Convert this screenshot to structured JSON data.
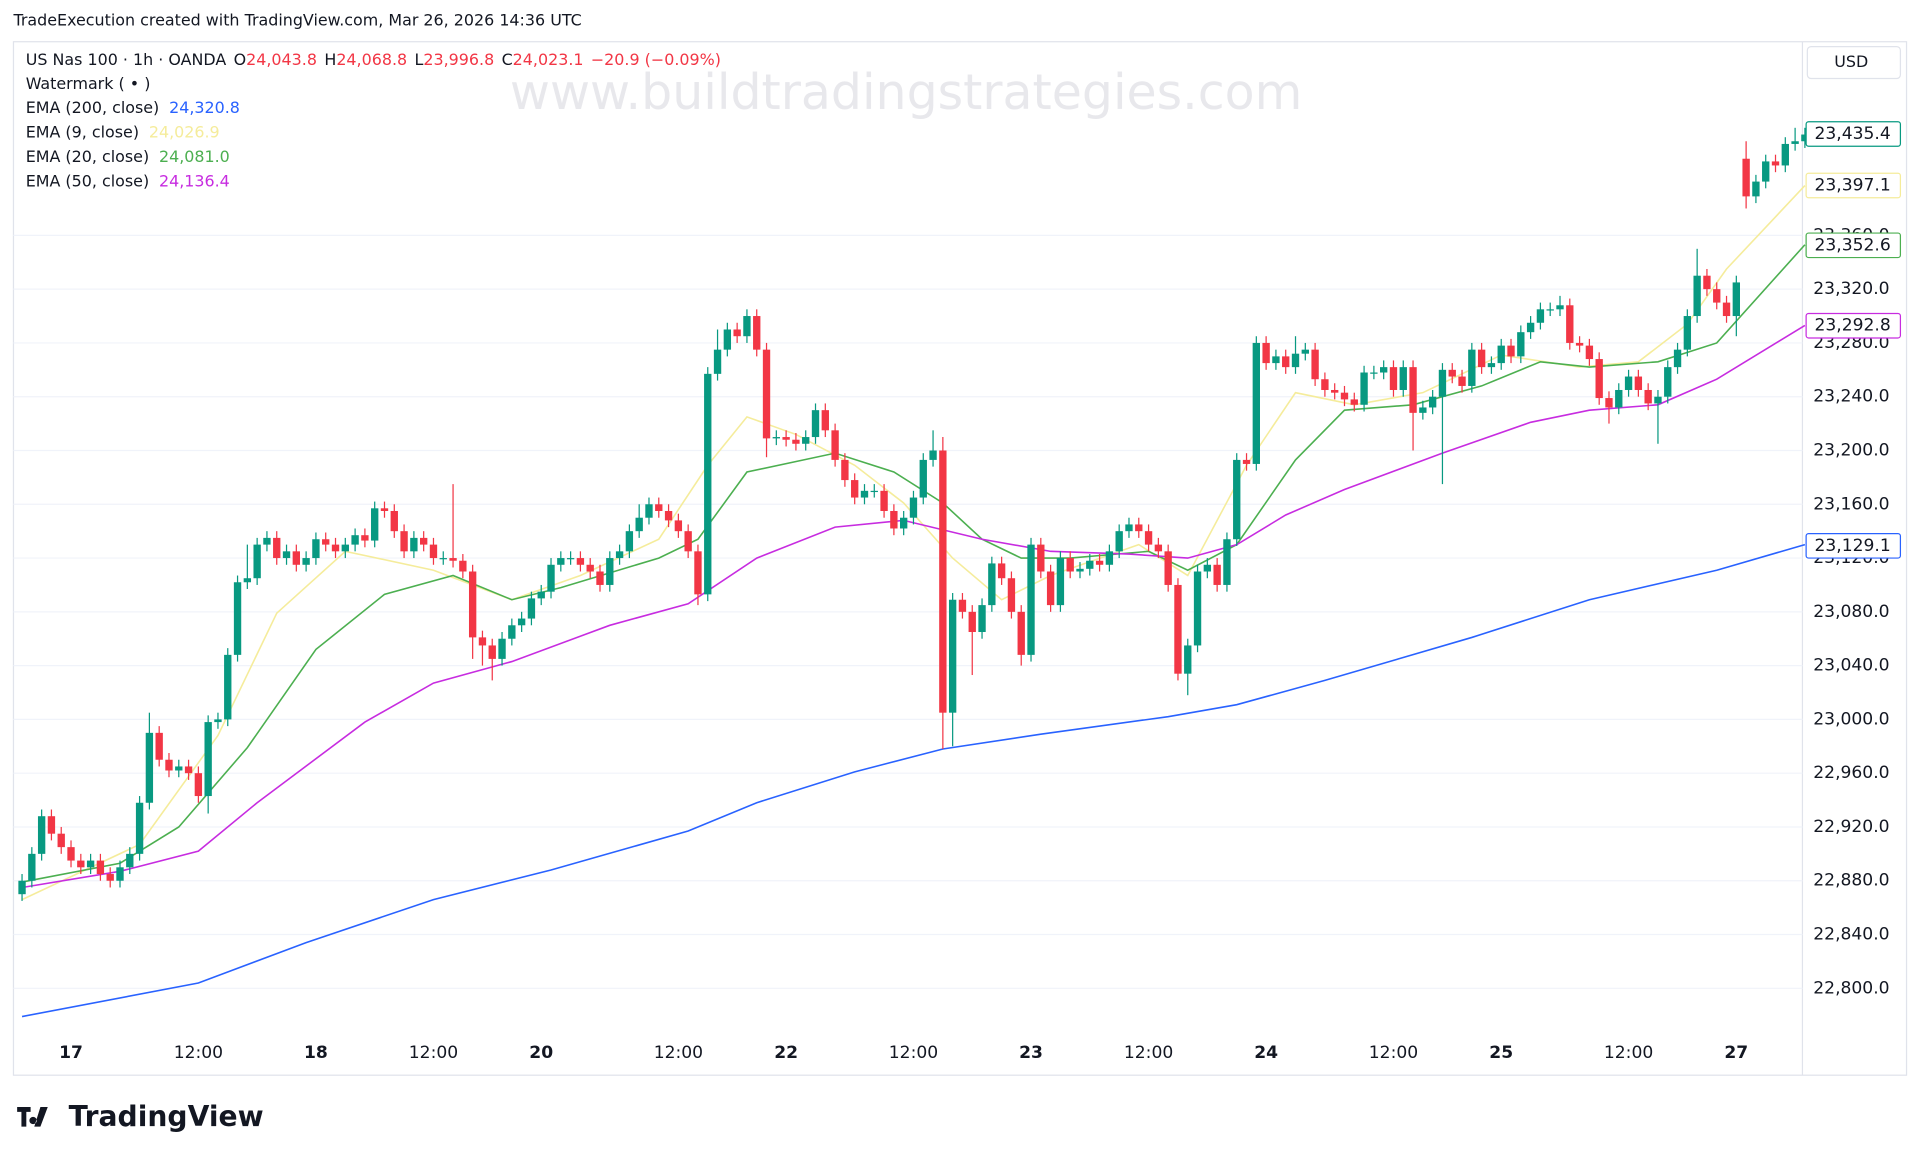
{
  "header": {
    "credit": "TradeExecution created with TradingView.com, Mar 26, 2026 14:36 UTC",
    "logo": "TradingView",
    "currency": "USD",
    "watermark": "www.buildtradingstrategies.com",
    "indicator": "Watermark ( • )"
  },
  "chart_data": {
    "type": "candlestick",
    "title": "US Nas 100 · 1h · OANDA",
    "ohlc_legend": [
      {
        "key": "O",
        "value": "24,043.8"
      },
      {
        "key": "H",
        "value": "24,068.8"
      },
      {
        "key": "L",
        "value": "23,996.8"
      },
      {
        "key": "C",
        "value": "24,023.1"
      }
    ],
    "change": "−20.9 (−0.09%)",
    "categories": [
      null,
      null,
      null,
      null,
      null,
      "17",
      null,
      null,
      null,
      null,
      null,
      null,
      null,
      null,
      null,
      null,
      null,
      null,
      "12:00",
      null,
      null,
      null,
      null,
      null,
      null,
      null,
      null,
      null,
      null,
      null,
      "18",
      null,
      null,
      null,
      null,
      null,
      null,
      null,
      null,
      null,
      null,
      null,
      "12:00",
      null,
      null,
      null,
      null,
      null,
      null,
      null,
      null,
      null,
      null,
      "20",
      null,
      null,
      null,
      null,
      null,
      null,
      null,
      null,
      null,
      null,
      null,
      null,
      null,
      "12:00",
      null,
      null,
      null,
      null,
      null,
      null,
      null,
      null,
      null,
      null,
      "22",
      null,
      null,
      null,
      null,
      null,
      null,
      null,
      null,
      null,
      null,
      null,
      null,
      "12:00",
      null,
      null,
      null,
      null,
      null,
      null,
      null,
      null,
      null,
      null,
      null,
      "23",
      null,
      null,
      null,
      null,
      null,
      null,
      null,
      null,
      null,
      null,
      null,
      "12:00",
      null,
      null,
      null,
      null,
      null,
      null,
      null,
      null,
      null,
      null,
      null,
      "24",
      null,
      null,
      null,
      null,
      null,
      null,
      null,
      null,
      null,
      null,
      null,
      null,
      "12:00",
      null,
      null,
      null,
      null,
      null,
      null,
      null,
      null,
      null,
      null,
      "25",
      null,
      null,
      null,
      null,
      null,
      null,
      null,
      null,
      null,
      null,
      null,
      null,
      "12:00",
      null,
      null,
      null,
      null,
      null,
      null,
      null,
      null,
      null,
      null,
      "27",
      null,
      null,
      null,
      null,
      null,
      null,
      null
    ],
    "candles": {
      "up_color": "#089981",
      "down_color": "#f23645",
      "last_value": 23435.4,
      "last_label": "23,435.4",
      "open": [
        22870,
        22880,
        22900,
        22928,
        22915,
        22905,
        22895,
        22890,
        22895,
        22885,
        22880,
        22890,
        22900,
        22938,
        22990,
        22970,
        22962,
        22965,
        22960,
        22943,
        22998,
        23000,
        23048,
        23102,
        23105,
        23130,
        23135,
        23120,
        23125,
        23115,
        23120,
        23134,
        23130,
        23125,
        23130,
        23137,
        23133,
        23157,
        23155,
        23140,
        23125,
        23135,
        23130,
        23120,
        23120,
        23118,
        23110,
        23061,
        23055,
        23045,
        23060,
        23070,
        23075,
        23090,
        23095,
        23115,
        23120,
        23120,
        23115,
        23110,
        23100,
        23120,
        23125,
        23140,
        23150,
        23160,
        23155,
        23148,
        23140,
        23125,
        23093,
        23257,
        23275,
        23290,
        23285,
        23300,
        23275,
        23209,
        23210,
        23208,
        23205,
        23210,
        23230,
        23215,
        23193,
        23178,
        23165,
        23170,
        23170,
        23155,
        23142,
        23150,
        23165,
        23193,
        23200,
        23005,
        23089,
        23080,
        23065,
        23085,
        23116,
        23105,
        23080,
        23048,
        23130,
        23110,
        23085,
        23120,
        23110,
        23112,
        23118,
        23115,
        23125,
        23140,
        23145,
        23140,
        23130,
        23125,
        23100,
        23034,
        23055,
        23110,
        23115,
        23100,
        23134,
        23193,
        23190,
        23280,
        23265,
        23270,
        23262,
        23272,
        23275,
        23253,
        23245,
        23243,
        23238,
        23234,
        23258,
        23258,
        23262,
        23245,
        23262,
        23228,
        23232,
        23240,
        23260,
        23255,
        23248,
        23275,
        23262,
        23265,
        23278,
        23270,
        23288,
        23295,
        23305,
        23305,
        23308,
        23280,
        23278,
        23268,
        23239,
        23232,
        23245,
        23255,
        23245,
        23235,
        23240,
        23262,
        23275,
        23300,
        23330,
        23320,
        23310,
        23300,
        23417,
        23389,
        23400,
        23415,
        23412,
        23428,
        23430
      ],
      "high": [
        22885,
        22905,
        22933,
        22933,
        22920,
        22910,
        22900,
        22900,
        22900,
        22890,
        22895,
        22905,
        22943,
        23005,
        22995,
        22975,
        22970,
        22970,
        22965,
        23003,
        23005,
        23053,
        23107,
        23130,
        23135,
        23140,
        23140,
        23130,
        23130,
        23125,
        23139,
        23139,
        23135,
        23135,
        23142,
        23142,
        23162,
        23162,
        23160,
        23145,
        23140,
        23140,
        23135,
        23125,
        23175,
        23123,
        23115,
        23066,
        23060,
        23065,
        23075,
        23080,
        23095,
        23100,
        23120,
        23125,
        23125,
        23125,
        23120,
        23115,
        23125,
        23130,
        23145,
        23160,
        23165,
        23165,
        23160,
        23153,
        23145,
        23130,
        23262,
        23290,
        23295,
        23295,
        23305,
        23305,
        23280,
        23215,
        23215,
        23213,
        23215,
        23235,
        23235,
        23220,
        23198,
        23183,
        23175,
        23175,
        23175,
        23160,
        23155,
        23170,
        23198,
        23215,
        23210,
        23094,
        23094,
        23085,
        23090,
        23121,
        23121,
        23110,
        23085,
        23135,
        23135,
        23115,
        23125,
        23125,
        23117,
        23123,
        23123,
        23130,
        23145,
        23150,
        23150,
        23145,
        23135,
        23130,
        23105,
        23060,
        23115,
        23120,
        23120,
        23139,
        23198,
        23198,
        23285,
        23285,
        23275,
        23275,
        23285,
        23280,
        23280,
        23258,
        23250,
        23248,
        23243,
        23263,
        23263,
        23267,
        23267,
        23267,
        23267,
        23237,
        23245,
        23265,
        23265,
        23260,
        23280,
        23280,
        23270,
        23283,
        23283,
        23293,
        23300,
        23310,
        23310,
        23315,
        23313,
        23285,
        23283,
        23273,
        23244,
        23250,
        23260,
        23260,
        23250,
        23245,
        23267,
        23280,
        23305,
        23350,
        23335,
        23325,
        23315,
        23330,
        23430,
        23405,
        23420,
        23420,
        23433,
        23440,
        23440
      ],
      "low": [
        22865,
        22875,
        22895,
        22910,
        22900,
        22890,
        22885,
        22885,
        22880,
        22875,
        22875,
        22885,
        22895,
        22933,
        22965,
        22957,
        22957,
        22955,
        22938,
        22930,
        22993,
        22995,
        23043,
        23097,
        23100,
        23125,
        23115,
        23115,
        23110,
        23110,
        23115,
        23125,
        23120,
        23120,
        23125,
        23128,
        23128,
        23150,
        23135,
        23120,
        23120,
        23125,
        23115,
        23115,
        23113,
        23105,
        23045,
        23040,
        23029,
        23040,
        23055,
        23065,
        23070,
        23085,
        23090,
        23110,
        23115,
        23110,
        23105,
        23095,
        23095,
        23115,
        23120,
        23135,
        23145,
        23150,
        23143,
        23135,
        23120,
        23085,
        23088,
        23252,
        23270,
        23280,
        23280,
        23270,
        23195,
        23204,
        23203,
        23200,
        23200,
        23205,
        23210,
        23188,
        23173,
        23160,
        23160,
        23165,
        23150,
        23137,
        23137,
        23145,
        23160,
        23188,
        22978,
        22980,
        23075,
        23033,
        23060,
        23080,
        23100,
        23075,
        23040,
        23043,
        23105,
        23080,
        23080,
        23105,
        23105,
        23107,
        23110,
        23110,
        23120,
        23135,
        23135,
        23125,
        23120,
        23095,
        23029,
        23018,
        23050,
        23105,
        23095,
        23095,
        23129,
        23185,
        23185,
        23260,
        23260,
        23257,
        23257,
        23267,
        23248,
        23240,
        23238,
        23233,
        23229,
        23229,
        23253,
        23253,
        23240,
        23240,
        23200,
        23223,
        23227,
        23175,
        23250,
        23243,
        23243,
        23257,
        23257,
        23260,
        23265,
        23265,
        23283,
        23290,
        23300,
        23300,
        23275,
        23273,
        23263,
        23234,
        23220,
        23227,
        23240,
        23240,
        23230,
        23205,
        23235,
        23257,
        23270,
        23295,
        23315,
        23305,
        23295,
        23285,
        23380,
        23384,
        23395,
        23407,
        23407,
        23423,
        23425
      ],
      "close": [
        22880,
        22900,
        22928,
        22915,
        22905,
        22895,
        22890,
        22895,
        22885,
        22880,
        22890,
        22900,
        22938,
        22990,
        22970,
        22962,
        22965,
        22960,
        22943,
        22998,
        23000,
        23048,
        23102,
        23105,
        23130,
        23135,
        23120,
        23125,
        23115,
        23120,
        23134,
        23130,
        23125,
        23130,
        23137,
        23133,
        23157,
        23155,
        23140,
        23125,
        23135,
        23130,
        23120,
        23120,
        23118,
        23110,
        23061,
        23055,
        23045,
        23060,
        23070,
        23075,
        23090,
        23095,
        23115,
        23120,
        23120,
        23115,
        23110,
        23100,
        23120,
        23125,
        23140,
        23150,
        23160,
        23155,
        23148,
        23140,
        23125,
        23093,
        23257,
        23275,
        23290,
        23285,
        23300,
        23275,
        23209,
        23210,
        23208,
        23205,
        23210,
        23230,
        23215,
        23193,
        23178,
        23165,
        23170,
        23170,
        23155,
        23142,
        23150,
        23165,
        23193,
        23200,
        23005,
        23089,
        23080,
        23065,
        23085,
        23116,
        23105,
        23080,
        23048,
        23130,
        23110,
        23085,
        23120,
        23110,
        23112,
        23118,
        23115,
        23125,
        23140,
        23145,
        23140,
        23130,
        23125,
        23100,
        23034,
        23055,
        23110,
        23115,
        23100,
        23134,
        23193,
        23190,
        23280,
        23265,
        23270,
        23262,
        23272,
        23275,
        23253,
        23245,
        23243,
        23238,
        23234,
        23258,
        23258,
        23262,
        23245,
        23262,
        23228,
        23232,
        23240,
        23260,
        23255,
        23248,
        23275,
        23262,
        23265,
        23278,
        23270,
        23288,
        23295,
        23305,
        23305,
        23308,
        23280,
        23278,
        23268,
        23239,
        23232,
        23245,
        23255,
        23245,
        23235,
        23240,
        23262,
        23275,
        23300,
        23330,
        23320,
        23310,
        23300,
        23325,
        23389,
        23400,
        23415,
        23412,
        23428,
        23430,
        23435
      ]
    },
    "series": [
      {
        "name": "EMA (200, close)",
        "value_label": "24,320.8",
        "color": "#2962ff",
        "last_value": 23129.1,
        "last_label": "23,129.1",
        "x": [
          0,
          18,
          29,
          42,
          54,
          68,
          75,
          85,
          94,
          104,
          117,
          124,
          133,
          148,
          160,
          173,
          182
        ],
        "values": [
          22779,
          22804,
          22834,
          22866,
          22888,
          22917,
          22938,
          22961,
          22978,
          22989,
          23002,
          23011,
          23029,
          23061,
          23089,
          23111,
          23130
        ]
      },
      {
        "name": "EMA (9, close)",
        "value_label": "24,026.9",
        "color": "#f5ec9b",
        "last_value": 23397.1,
        "last_label": "23,397.1",
        "x": [
          0,
          12,
          20,
          26,
          33,
          42,
          50,
          57,
          65,
          70,
          74,
          79,
          85,
          90,
          95,
          100,
          105,
          114,
          119,
          125,
          130,
          136,
          143,
          151,
          159,
          165,
          170,
          174,
          182
        ],
        "values": [
          22866,
          22907,
          22988,
          23079,
          23125,
          23111,
          23089,
          23107,
          23134,
          23189,
          23225,
          23212,
          23189,
          23161,
          23120,
          23089,
          23107,
          23130,
          23107,
          23189,
          23243,
          23234,
          23243,
          23271,
          23262,
          23266,
          23294,
          23335,
          23397
        ]
      },
      {
        "name": "EMA (20, close)",
        "value_label": "24,081.0",
        "color": "#4caf50",
        "last_value": 23352.6,
        "last_label": "23,352.6",
        "x": [
          0,
          10,
          16,
          23,
          30,
          37,
          44,
          50,
          55,
          65,
          69,
          74,
          83,
          89,
          94,
          98,
          102,
          107,
          115,
          119,
          124,
          130,
          135,
          142,
          149,
          155,
          160,
          167,
          173,
          182
        ],
        "values": [
          22879,
          22893,
          22920,
          22979,
          23052,
          23093,
          23107,
          23089,
          23098,
          23120,
          23134,
          23184,
          23198,
          23184,
          23161,
          23134,
          23120,
          23120,
          23125,
          23111,
          23130,
          23193,
          23230,
          23234,
          23248,
          23266,
          23262,
          23266,
          23280,
          23353
        ]
      },
      {
        "name": "EMA (50, close)",
        "value_label": "24,136.4",
        "color": "#c72ce0",
        "last_value": 23292.8,
        "last_label": "23,292.8",
        "x": [
          0,
          10,
          18,
          24,
          35,
          42,
          50,
          60,
          68,
          75,
          83,
          90,
          98,
          105,
          113,
          119,
          124,
          129,
          135,
          145,
          154,
          160,
          167,
          173,
          182
        ],
        "values": [
          22875,
          22887,
          22902,
          22938,
          22998,
          23027,
          23043,
          23070,
          23086,
          23120,
          23143,
          23148,
          23134,
          23125,
          23123,
          23120,
          23130,
          23152,
          23171,
          23198,
          23221,
          23230,
          23234,
          23253,
          23293
        ]
      }
    ],
    "ylim": [
      22762.7,
      23502.2
    ],
    "yticks": [
      {
        "value": 22800,
        "label": "22,800.0"
      },
      {
        "value": 22840,
        "label": "22,840.0"
      },
      {
        "value": 22880,
        "label": "22,880.0"
      },
      {
        "value": 22920,
        "label": "22,920.0"
      },
      {
        "value": 22960,
        "label": "22,960.0"
      },
      {
        "value": 23000,
        "label": "23,000.0"
      },
      {
        "value": 23040,
        "label": "23,040.0"
      },
      {
        "value": 23080,
        "label": "23,080.0"
      },
      {
        "value": 23120,
        "label": "23,120.0"
      },
      {
        "value": 23160,
        "label": "23,160.0"
      },
      {
        "value": 23200,
        "label": "23,200.0"
      },
      {
        "value": 23240,
        "label": "23,240.0"
      },
      {
        "value": 23280,
        "label": "23,280.0"
      },
      {
        "value": 23320,
        "label": "23,320.0"
      },
      {
        "value": 23360,
        "label": "23,360.0"
      }
    ],
    "grid": true
  }
}
